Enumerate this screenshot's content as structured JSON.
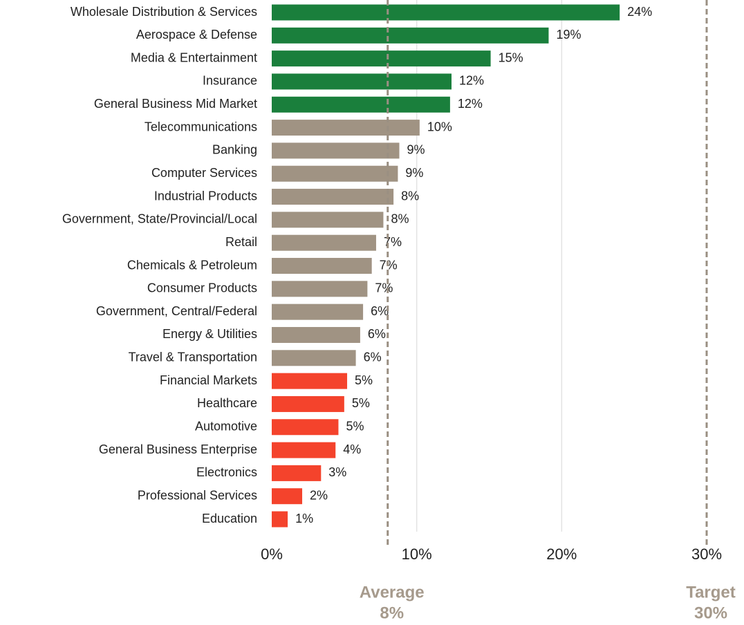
{
  "chart_data": {
    "type": "barh",
    "categories": [
      "Wholesale Distribution & Services",
      "Aerospace & Defense",
      "Media & Entertainment",
      "Insurance",
      "General Business Mid Market",
      "Telecommunications",
      "Banking",
      "Computer Services",
      "Industrial Products",
      "Government, State/Provincial/Local",
      "Retail",
      "Chemicals & Petroleum",
      "Consumer Products",
      "Government, Central/Federal",
      "Energy & Utilities",
      "Travel & Transportation",
      "Financial Markets",
      "Healthcare",
      "Automotive",
      "General Business Enterprise",
      "Electronics",
      "Professional Services",
      "Education"
    ],
    "values": [
      24.0,
      19.1,
      15.1,
      12.4,
      12.3,
      10.2,
      8.8,
      8.7,
      8.4,
      7.7,
      7.2,
      6.9,
      6.6,
      6.3,
      6.1,
      5.8,
      5.2,
      5.0,
      4.6,
      4.4,
      3.4,
      2.1,
      1.1
    ],
    "value_labels": [
      "24%",
      "19%",
      "15%",
      "12%",
      "12%",
      "10%",
      "9%",
      "9%",
      "8%",
      "8%",
      "7%",
      "7%",
      "7%",
      "6%",
      "6%",
      "6%",
      "5%",
      "5%",
      "5%",
      "4%",
      "3%",
      "2%",
      "1%"
    ],
    "colors": [
      "#1a7f3c",
      "#1a7f3c",
      "#1a7f3c",
      "#1a7f3c",
      "#1a7f3c",
      "#a09383",
      "#a09383",
      "#a09383",
      "#a09383",
      "#a09383",
      "#a09383",
      "#a09383",
      "#a09383",
      "#a09383",
      "#a09383",
      "#a09383",
      "#f4432c",
      "#f4432c",
      "#f4432c",
      "#f4432c",
      "#f4432c",
      "#f4432c",
      "#f4432c"
    ],
    "xlim": [
      0,
      30
    ],
    "xticks": [
      {
        "value": 0,
        "label": "0%"
      },
      {
        "value": 10,
        "label": "10%"
      },
      {
        "value": 20,
        "label": "20%"
      },
      {
        "value": 30,
        "label": "30%"
      }
    ],
    "grid": true,
    "reference_lines": [
      {
        "label": "Average",
        "value": 8,
        "value_label": "8%"
      },
      {
        "label": "Target",
        "value": 30,
        "value_label": "30%"
      }
    ]
  }
}
